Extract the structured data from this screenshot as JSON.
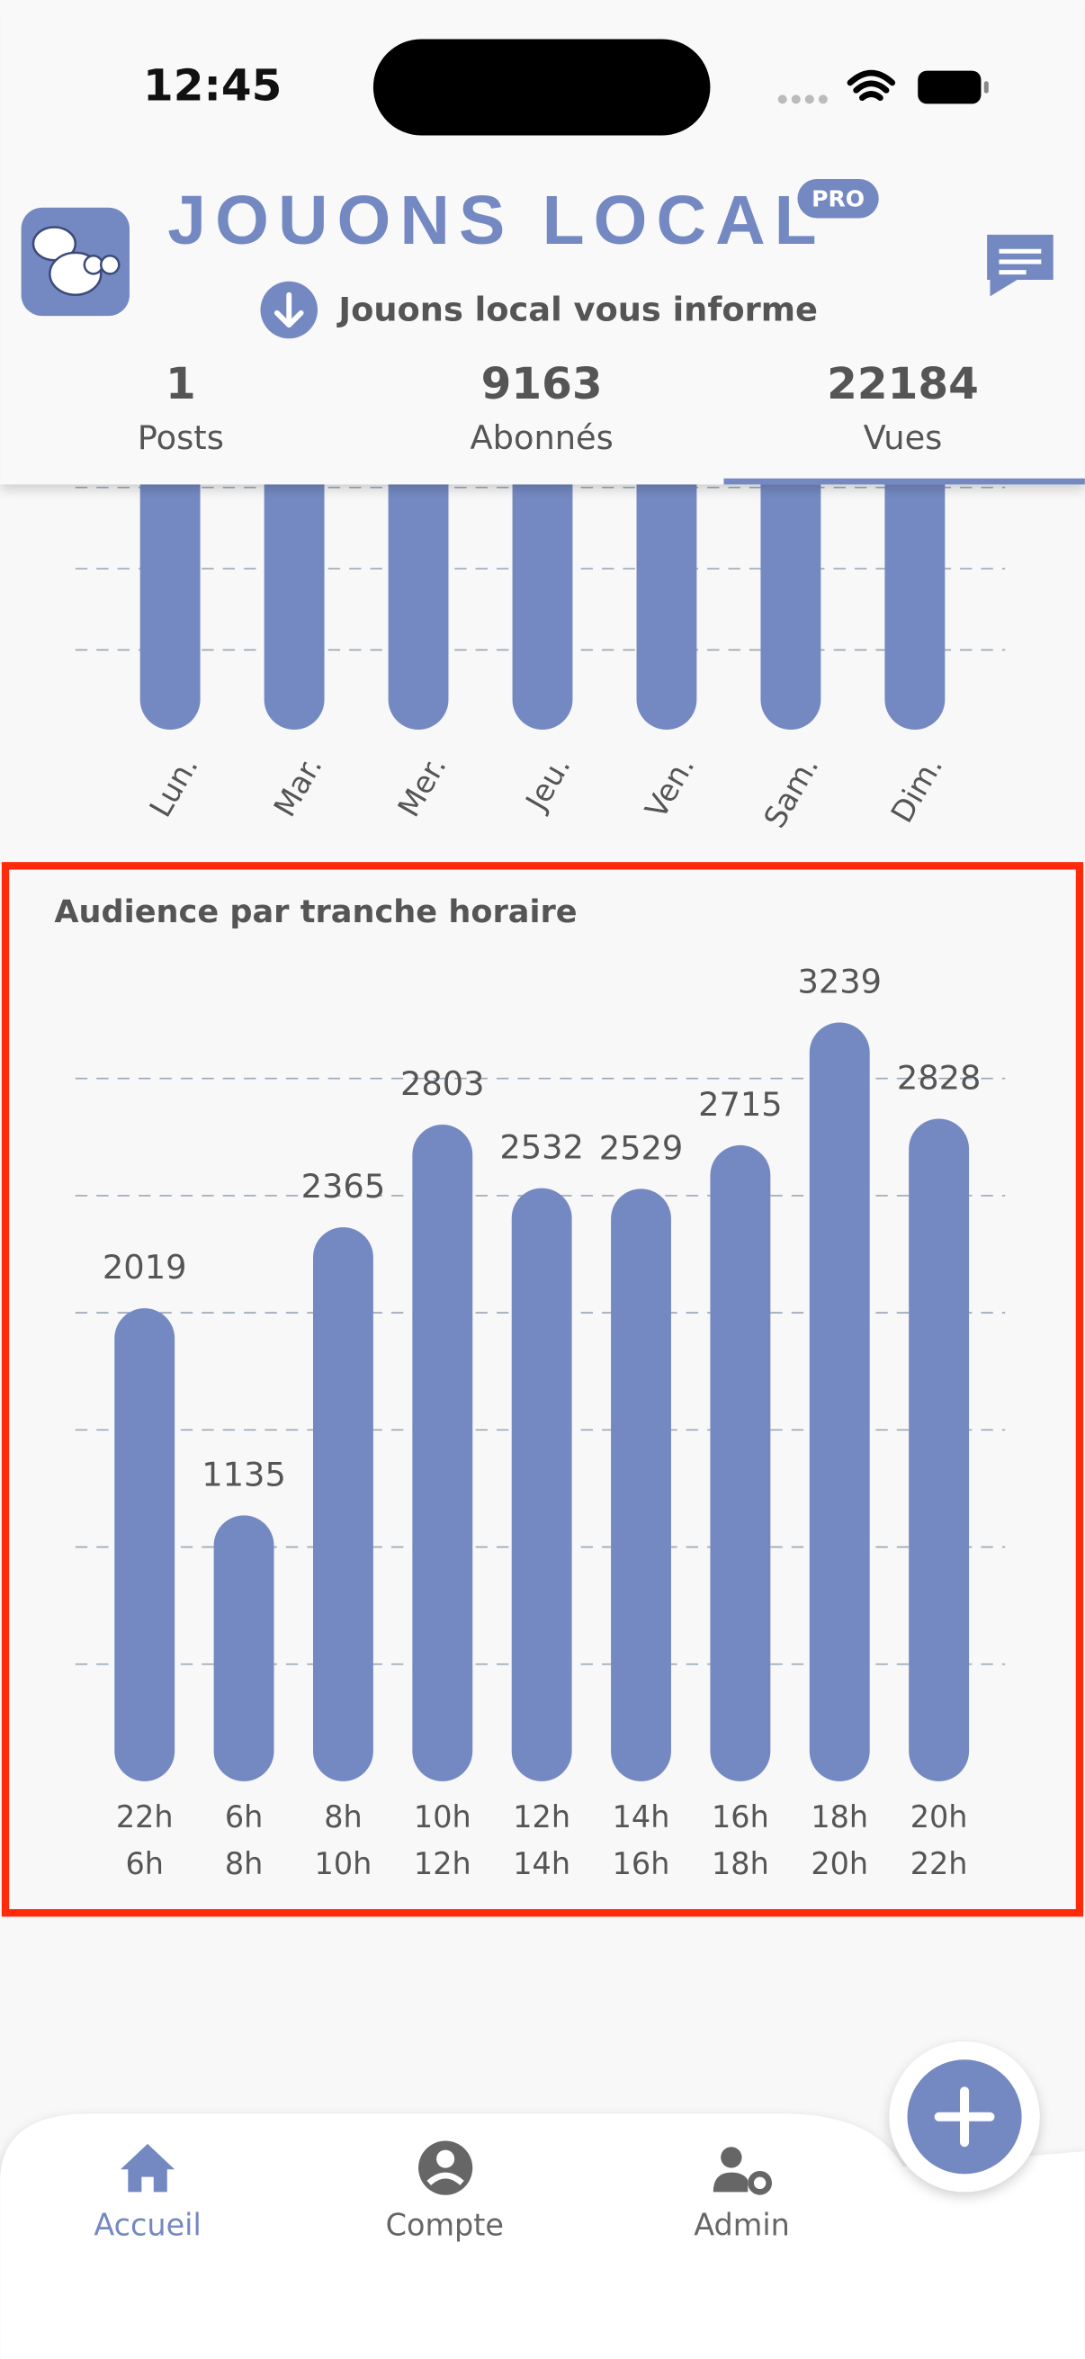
{
  "status_bar": {
    "time": "12:45"
  },
  "header": {
    "title": "JOUONS LOCAL",
    "badge": "PRO",
    "subtitle": "Jouons local vous informe"
  },
  "stats": [
    {
      "value": 1,
      "label": "Posts"
    },
    {
      "value": 9163,
      "label": "Abonnés"
    },
    {
      "value": 22184,
      "label": "Vues"
    }
  ],
  "weekly_chart": {
    "categories": [
      "Lun.",
      "Mar.",
      "Mer.",
      "Jeu.",
      "Ven.",
      "Sam.",
      "Dim."
    ]
  },
  "chart_data": {
    "type": "bar",
    "title": "Audience par tranche horaire",
    "categories": [
      [
        "22h",
        "6h"
      ],
      [
        "6h",
        "8h"
      ],
      [
        "8h",
        "10h"
      ],
      [
        "10h",
        "12h"
      ],
      [
        "12h",
        "14h"
      ],
      [
        "14h",
        "16h"
      ],
      [
        "16h",
        "18h"
      ],
      [
        "18h",
        "20h"
      ],
      [
        "20h",
        "22h"
      ]
    ],
    "values": [
      2019,
      1135,
      2365,
      2803,
      2532,
      2529,
      2715,
      3239,
      2828
    ],
    "color": "#7489c2",
    "ylim": [
      0,
      3500
    ],
    "yticks": [
      500,
      1000,
      1500,
      2000,
      2500,
      3000
    ],
    "grid": true
  },
  "nav": {
    "items": [
      "Accueil",
      "Compte",
      "Admin"
    ]
  }
}
